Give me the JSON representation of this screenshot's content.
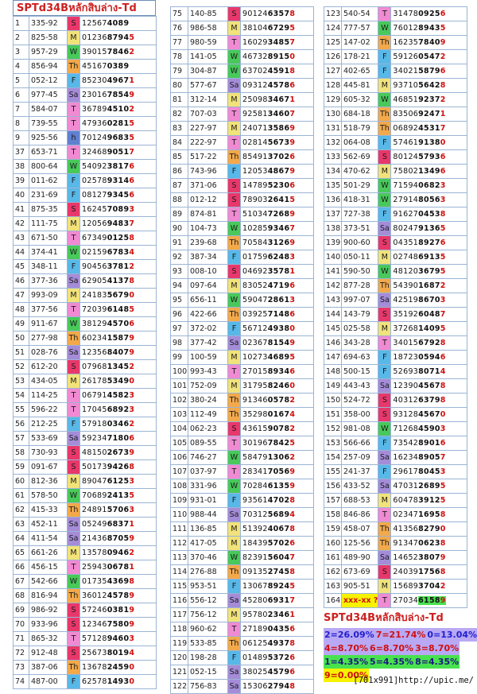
{
  "title": "SPTd34Bหลักสิบล่าง-Td",
  "footer": "[701x991]http://upic.me/",
  "colA": [
    [
      "1",
      "335-92",
      "S",
      "12567",
      "4089"
    ],
    [
      "2",
      "825-58",
      "M",
      "01236",
      "8794",
      "5"
    ],
    [
      "3",
      "957-29",
      "W",
      "39015",
      "7846",
      "2"
    ],
    [
      "4",
      "856-94",
      "Th",
      "45167",
      "0389"
    ],
    [
      "5",
      "052-12",
      "F",
      "85230",
      "4967",
      "1"
    ],
    [
      "6",
      "977-45",
      "Sa",
      "23016",
      "7854",
      "9"
    ],
    [
      "7",
      "584-07",
      "T",
      "36789",
      "4510",
      "2"
    ],
    [
      "8",
      "739-55",
      "T",
      "47936",
      "0281",
      "5"
    ],
    [
      "9",
      "925-56",
      "h",
      "70124",
      "9683",
      "5"
    ],
    [
      "37",
      "653-71",
      "T",
      "32468",
      "9051",
      "7"
    ],
    [
      "38",
      "800-64",
      "W",
      "54092",
      "3817",
      "6"
    ],
    [
      "39",
      "011-62",
      "F",
      "02578",
      "9314",
      "6"
    ],
    [
      "40",
      "231-69",
      "F",
      "08127",
      "9345",
      "6"
    ],
    [
      "41",
      "875-35",
      "S",
      "16245",
      "7089",
      "3"
    ],
    [
      "42",
      "111-75",
      "M",
      "12056",
      "9483",
      "7"
    ],
    [
      "43",
      "671-50",
      "T",
      "67349",
      "0125",
      "8"
    ],
    [
      "44",
      "374-41",
      "W",
      "02159",
      "6783",
      "4"
    ],
    [
      "45",
      "348-11",
      "F",
      "90456",
      "3781",
      "2"
    ],
    [
      "46",
      "377-36",
      "Sa",
      "62905",
      "4137",
      "8"
    ],
    [
      "47",
      "993-09",
      "M",
      "24183",
      "5679",
      "0"
    ],
    [
      "48",
      "377-56",
      "T",
      "72039",
      "6148",
      "5"
    ],
    [
      "49",
      "911-67",
      "W",
      "38129",
      "4570",
      "6"
    ],
    [
      "50",
      "277-98",
      "Th",
      "60234",
      "1587",
      "9"
    ],
    [
      "51",
      "028-76",
      "Sa",
      "12356",
      "8407",
      "9"
    ],
    [
      "52",
      "612-20",
      "S",
      "07968",
      "1345",
      "2"
    ],
    [
      "53",
      "434-05",
      "M",
      "26178",
      "5349",
      "0"
    ],
    [
      "54",
      "114-25",
      "T",
      "06791",
      "4582",
      "3"
    ],
    [
      "55",
      "596-22",
      "T",
      "17045",
      "6892",
      "3"
    ],
    [
      "56",
      "212-25",
      "F",
      "57918",
      "0346",
      "2"
    ],
    [
      "57",
      "533-69",
      "Sa",
      "59234",
      "7180",
      "6"
    ],
    [
      "58",
      "730-93",
      "S",
      "48150",
      "2673",
      "9"
    ],
    [
      "59",
      "091-67",
      "S",
      "50173",
      "9426",
      "8"
    ],
    [
      "60",
      "812-36",
      "M",
      "89047",
      "6125",
      "3"
    ],
    [
      "61",
      "578-50",
      "W",
      "70689",
      "2413",
      "5"
    ],
    [
      "62",
      "415-33",
      "Th",
      "24891",
      "5706",
      "3"
    ],
    [
      "63",
      "452-11",
      "Sa",
      "05249",
      "6837",
      "1"
    ],
    [
      "64",
      "411-54",
      "Sa",
      "21436",
      "8705",
      "9"
    ],
    [
      "65",
      "661-26",
      "M",
      "13578",
      "0946",
      "2"
    ],
    [
      "66",
      "456-15",
      "T",
      "25943",
      "0678",
      "1"
    ],
    [
      "67",
      "542-66",
      "W",
      "01735",
      "4369",
      "8"
    ],
    [
      "68",
      "816-94",
      "Th",
      "36012",
      "4578",
      "9"
    ],
    [
      "69",
      "986-92",
      "S",
      "57246",
      "0381",
      "9"
    ],
    [
      "70",
      "933-96",
      "S",
      "12346",
      "7580",
      "9"
    ],
    [
      "71",
      "865-32",
      "T",
      "57128",
      "9460",
      "3"
    ],
    [
      "72",
      "912-48",
      "S",
      "25673",
      "8019",
      "4"
    ],
    [
      "73",
      "387-06",
      "Th",
      "13678",
      "2459",
      "0"
    ],
    [
      "74",
      "487-00",
      "F",
      "62578",
      "1493",
      "0"
    ]
  ],
  "colB": [
    [
      "75",
      "140-85",
      "S",
      "90124",
      "6357",
      "8"
    ],
    [
      "76",
      "986-58",
      "M",
      "38104",
      "6729",
      "5"
    ],
    [
      "77",
      "980-59",
      "T",
      "16029",
      "3485",
      "7"
    ],
    [
      "78",
      "141-05",
      "W",
      "46732",
      "8915",
      "0"
    ],
    [
      "79",
      "304-87",
      "W",
      "63702",
      "4591",
      "8"
    ],
    [
      "80",
      "577-67",
      "Sa",
      "09312",
      "4578",
      "6"
    ],
    [
      "81",
      "312-14",
      "M",
      "25098",
      "3467",
      "1"
    ],
    [
      "82",
      "707-03",
      "T",
      "92581",
      "3460",
      "7"
    ],
    [
      "83",
      "227-97",
      "M",
      "24071",
      "3586",
      "9"
    ],
    [
      "84",
      "222-97",
      "T",
      "02814",
      "5673",
      "9"
    ],
    [
      "85",
      "517-22",
      "Th",
      "85491",
      "3702",
      "6"
    ],
    [
      "86",
      "743-96",
      "F",
      "12053",
      "4867",
      "9"
    ],
    [
      "87",
      "371-06",
      "S",
      "14789",
      "5230",
      "6"
    ],
    [
      "88",
      "012-12",
      "S",
      "78903",
      "2641",
      "5"
    ],
    [
      "89",
      "874-81",
      "T",
      "51034",
      "7268",
      "9"
    ],
    [
      "90",
      "104-73",
      "W",
      "10285",
      "9346",
      "7"
    ],
    [
      "91",
      "239-68",
      "Th",
      "70584",
      "3126",
      "9"
    ],
    [
      "92",
      "387-34",
      "F",
      "01759",
      "6248",
      "3"
    ],
    [
      "93",
      "008-10",
      "S",
      "04692",
      "3578",
      "1"
    ],
    [
      "94",
      "097-64",
      "M",
      "83052",
      "4719",
      "6"
    ],
    [
      "95",
      "656-11",
      "W",
      "59047",
      "2861",
      "3"
    ],
    [
      "96",
      "422-66",
      "Th",
      "03925",
      "7148",
      "6"
    ],
    [
      "97",
      "372-02",
      "F",
      "56712",
      "4938",
      "0"
    ],
    [
      "98",
      "377-42",
      "Sa",
      "02367",
      "8154",
      "9"
    ],
    [
      "99",
      "100-59",
      "M",
      "10273",
      "4689",
      "5"
    ],
    [
      "100",
      "993-43",
      "T",
      "27015",
      "8934",
      "6"
    ],
    [
      "101",
      "752-09",
      "M",
      "31795",
      "8246",
      "0"
    ],
    [
      "102",
      "380-24",
      "Th",
      "91346",
      "0578",
      "2"
    ],
    [
      "103",
      "112-49",
      "Th",
      "35298",
      "0167",
      "4"
    ],
    [
      "104",
      "062-23",
      "S",
      "43615",
      "9078",
      "2"
    ],
    [
      "105",
      "089-55",
      "T",
      "30196",
      "7842",
      "5"
    ],
    [
      "106",
      "746-27",
      "W",
      "58479",
      "1306",
      "2"
    ],
    [
      "107",
      "037-97",
      "T",
      "28341",
      "7056",
      "9"
    ],
    [
      "108",
      "331-96",
      "W",
      "70284",
      "6135",
      "9"
    ],
    [
      "109",
      "931-01",
      "F",
      "93561",
      "4702",
      "8"
    ],
    [
      "110",
      "988-44",
      "Sa",
      "70312",
      "5689",
      "4"
    ],
    [
      "111",
      "136-85",
      "M",
      "51392",
      "4067",
      "8"
    ],
    [
      "112",
      "417-05",
      "M",
      "18439",
      "5702",
      "6"
    ],
    [
      "113",
      "370-46",
      "W",
      "82391",
      "5604",
      "7"
    ],
    [
      "114",
      "276-88",
      "Th",
      "09135",
      "2745",
      "8"
    ],
    [
      "115",
      "953-51",
      "F",
      "13067",
      "8924",
      "5"
    ],
    [
      "116",
      "556-12",
      "Sa",
      "45280",
      "6931",
      "7"
    ],
    [
      "117",
      "756-12",
      "M",
      "95780",
      "2346",
      "1"
    ],
    [
      "118",
      "960-62",
      "T",
      "27189",
      "0435",
      "6"
    ],
    [
      "119",
      "533-85",
      "Th",
      "06125",
      "4937",
      "8"
    ],
    [
      "120",
      "198-28",
      "F",
      "01489",
      "5372",
      "6"
    ],
    [
      "121",
      "052-15",
      "Sa",
      "38025",
      "4579",
      "6"
    ],
    [
      "122",
      "756-83",
      "Sa",
      "15306",
      "2794",
      "8"
    ]
  ],
  "colC": [
    [
      "123",
      "540-54",
      "T",
      "31478",
      "0925",
      "6"
    ],
    [
      "124",
      "777-57",
      "W",
      "76012",
      "8943",
      "5"
    ],
    [
      "125",
      "147-02",
      "Th",
      "16235",
      "7840",
      "9"
    ],
    [
      "126",
      "178-21",
      "F",
      "59126",
      "0547",
      "2"
    ],
    [
      "127",
      "402-65",
      "F",
      "34021",
      "5879",
      "6"
    ],
    [
      "128",
      "445-81",
      "M",
      "93710",
      "5642",
      "8"
    ],
    [
      "129",
      "605-32",
      "W",
      "46851",
      "9237",
      "2"
    ],
    [
      "130",
      "684-18",
      "Th",
      "83506",
      "9247",
      "1"
    ],
    [
      "131",
      "518-79",
      "Th",
      "06892",
      "4531",
      "7"
    ],
    [
      "132",
      "064-08",
      "F",
      "57461",
      "9138",
      "0"
    ],
    [
      "133",
      "562-69",
      "S",
      "80124",
      "5793",
      "6"
    ],
    [
      "134",
      "470-62",
      "M",
      "75802",
      "1349",
      "6"
    ],
    [
      "135",
      "501-29",
      "W",
      "71594",
      "0682",
      "3"
    ],
    [
      "136",
      "418-31",
      "W",
      "27914",
      "8056",
      "3"
    ],
    [
      "137",
      "727-38",
      "F",
      "91627",
      "0453",
      "8"
    ],
    [
      "138",
      "373-51",
      "Sa",
      "80247",
      "9136",
      "5"
    ],
    [
      "139",
      "900-60",
      "S",
      "04351",
      "8927",
      "6"
    ],
    [
      "140",
      "050-11",
      "M",
      "02748",
      "6913",
      "5"
    ],
    [
      "141",
      "590-50",
      "W",
      "48120",
      "3679",
      "5"
    ],
    [
      "142",
      "877-28",
      "Th",
      "54390",
      "1687",
      "2"
    ],
    [
      "143",
      "997-07",
      "Sa",
      "42519",
      "8670",
      "3"
    ],
    [
      "144",
      "143-79",
      "S",
      "35192",
      "6048",
      "7"
    ],
    [
      "145",
      "025-58",
      "M",
      "37268",
      "1409",
      "5"
    ],
    [
      "146",
      "343-28",
      "T",
      "34015",
      "6792",
      "8"
    ],
    [
      "147",
      "694-63",
      "F",
      "18723",
      "0594",
      "6"
    ],
    [
      "148",
      "500-15",
      "F",
      "52693",
      "8071",
      "4"
    ],
    [
      "149",
      "443-43",
      "Sa",
      "12390",
      "4567",
      "8"
    ],
    [
      "150",
      "524-72",
      "S",
      "40312",
      "6379",
      "8"
    ],
    [
      "151",
      "358-00",
      "S",
      "93128",
      "4567",
      "0"
    ],
    [
      "152",
      "981-08",
      "W",
      "71268",
      "4590",
      "3"
    ],
    [
      "153",
      "566-66",
      "F",
      "73542",
      "8901",
      "6"
    ],
    [
      "154",
      "257-09",
      "Sa",
      "16234",
      "8905",
      "7"
    ],
    [
      "155",
      "241-37",
      "F",
      "29617",
      "8045",
      "3"
    ],
    [
      "156",
      "433-52",
      "Sa",
      "47031",
      "2689",
      "5"
    ],
    [
      "157",
      "688-53",
      "M",
      "60478",
      "3912",
      "5"
    ],
    [
      "158",
      "846-86",
      "T",
      "02347",
      "1695",
      "8"
    ],
    [
      "159",
      "458-07",
      "Th",
      "41356",
      "8279",
      "0"
    ],
    [
      "160",
      "125-56",
      "Th",
      "91347",
      "0623",
      "8"
    ],
    [
      "161",
      "489-90",
      "Sa",
      "14652",
      "3807",
      "9"
    ],
    [
      "162",
      "673-69",
      "S",
      "24039",
      "1756",
      "8"
    ],
    [
      "163",
      "905-51",
      "M",
      "15689",
      "3704",
      "2"
    ],
    [
      "164",
      "xxx-xx ?",
      "T",
      "27034",
      "6158",
      "9"
    ]
  ],
  "stats": [
    [
      {
        "t": "2=26.09%",
        "c": "b"
      },
      {
        "t": "7=21.74%",
        "c": "p"
      },
      {
        "t": "0=13.04%",
        "c": "b"
      }
    ],
    [
      {
        "t": "4=8.70%",
        "c": "p"
      },
      {
        "t": "6=8.70%",
        "c": "p"
      },
      {
        "t": "3=8.70%",
        "c": "p"
      }
    ],
    [
      {
        "t": "1=4.35%",
        "c": "g"
      },
      {
        "t": "5=4.35%",
        "c": "g"
      },
      {
        "t": "8=4.35%",
        "c": "g"
      }
    ],
    [
      {
        "t": "9=0.00%",
        "c": "y"
      }
    ]
  ],
  "colors": {
    "S": "#e8386b",
    "M": "#f1e27a",
    "T": "#f08ad2",
    "W": "#48c95a",
    "Th": "#f3a94a",
    "F": "#58b8e8",
    "Sa": "#a58cd8"
  }
}
